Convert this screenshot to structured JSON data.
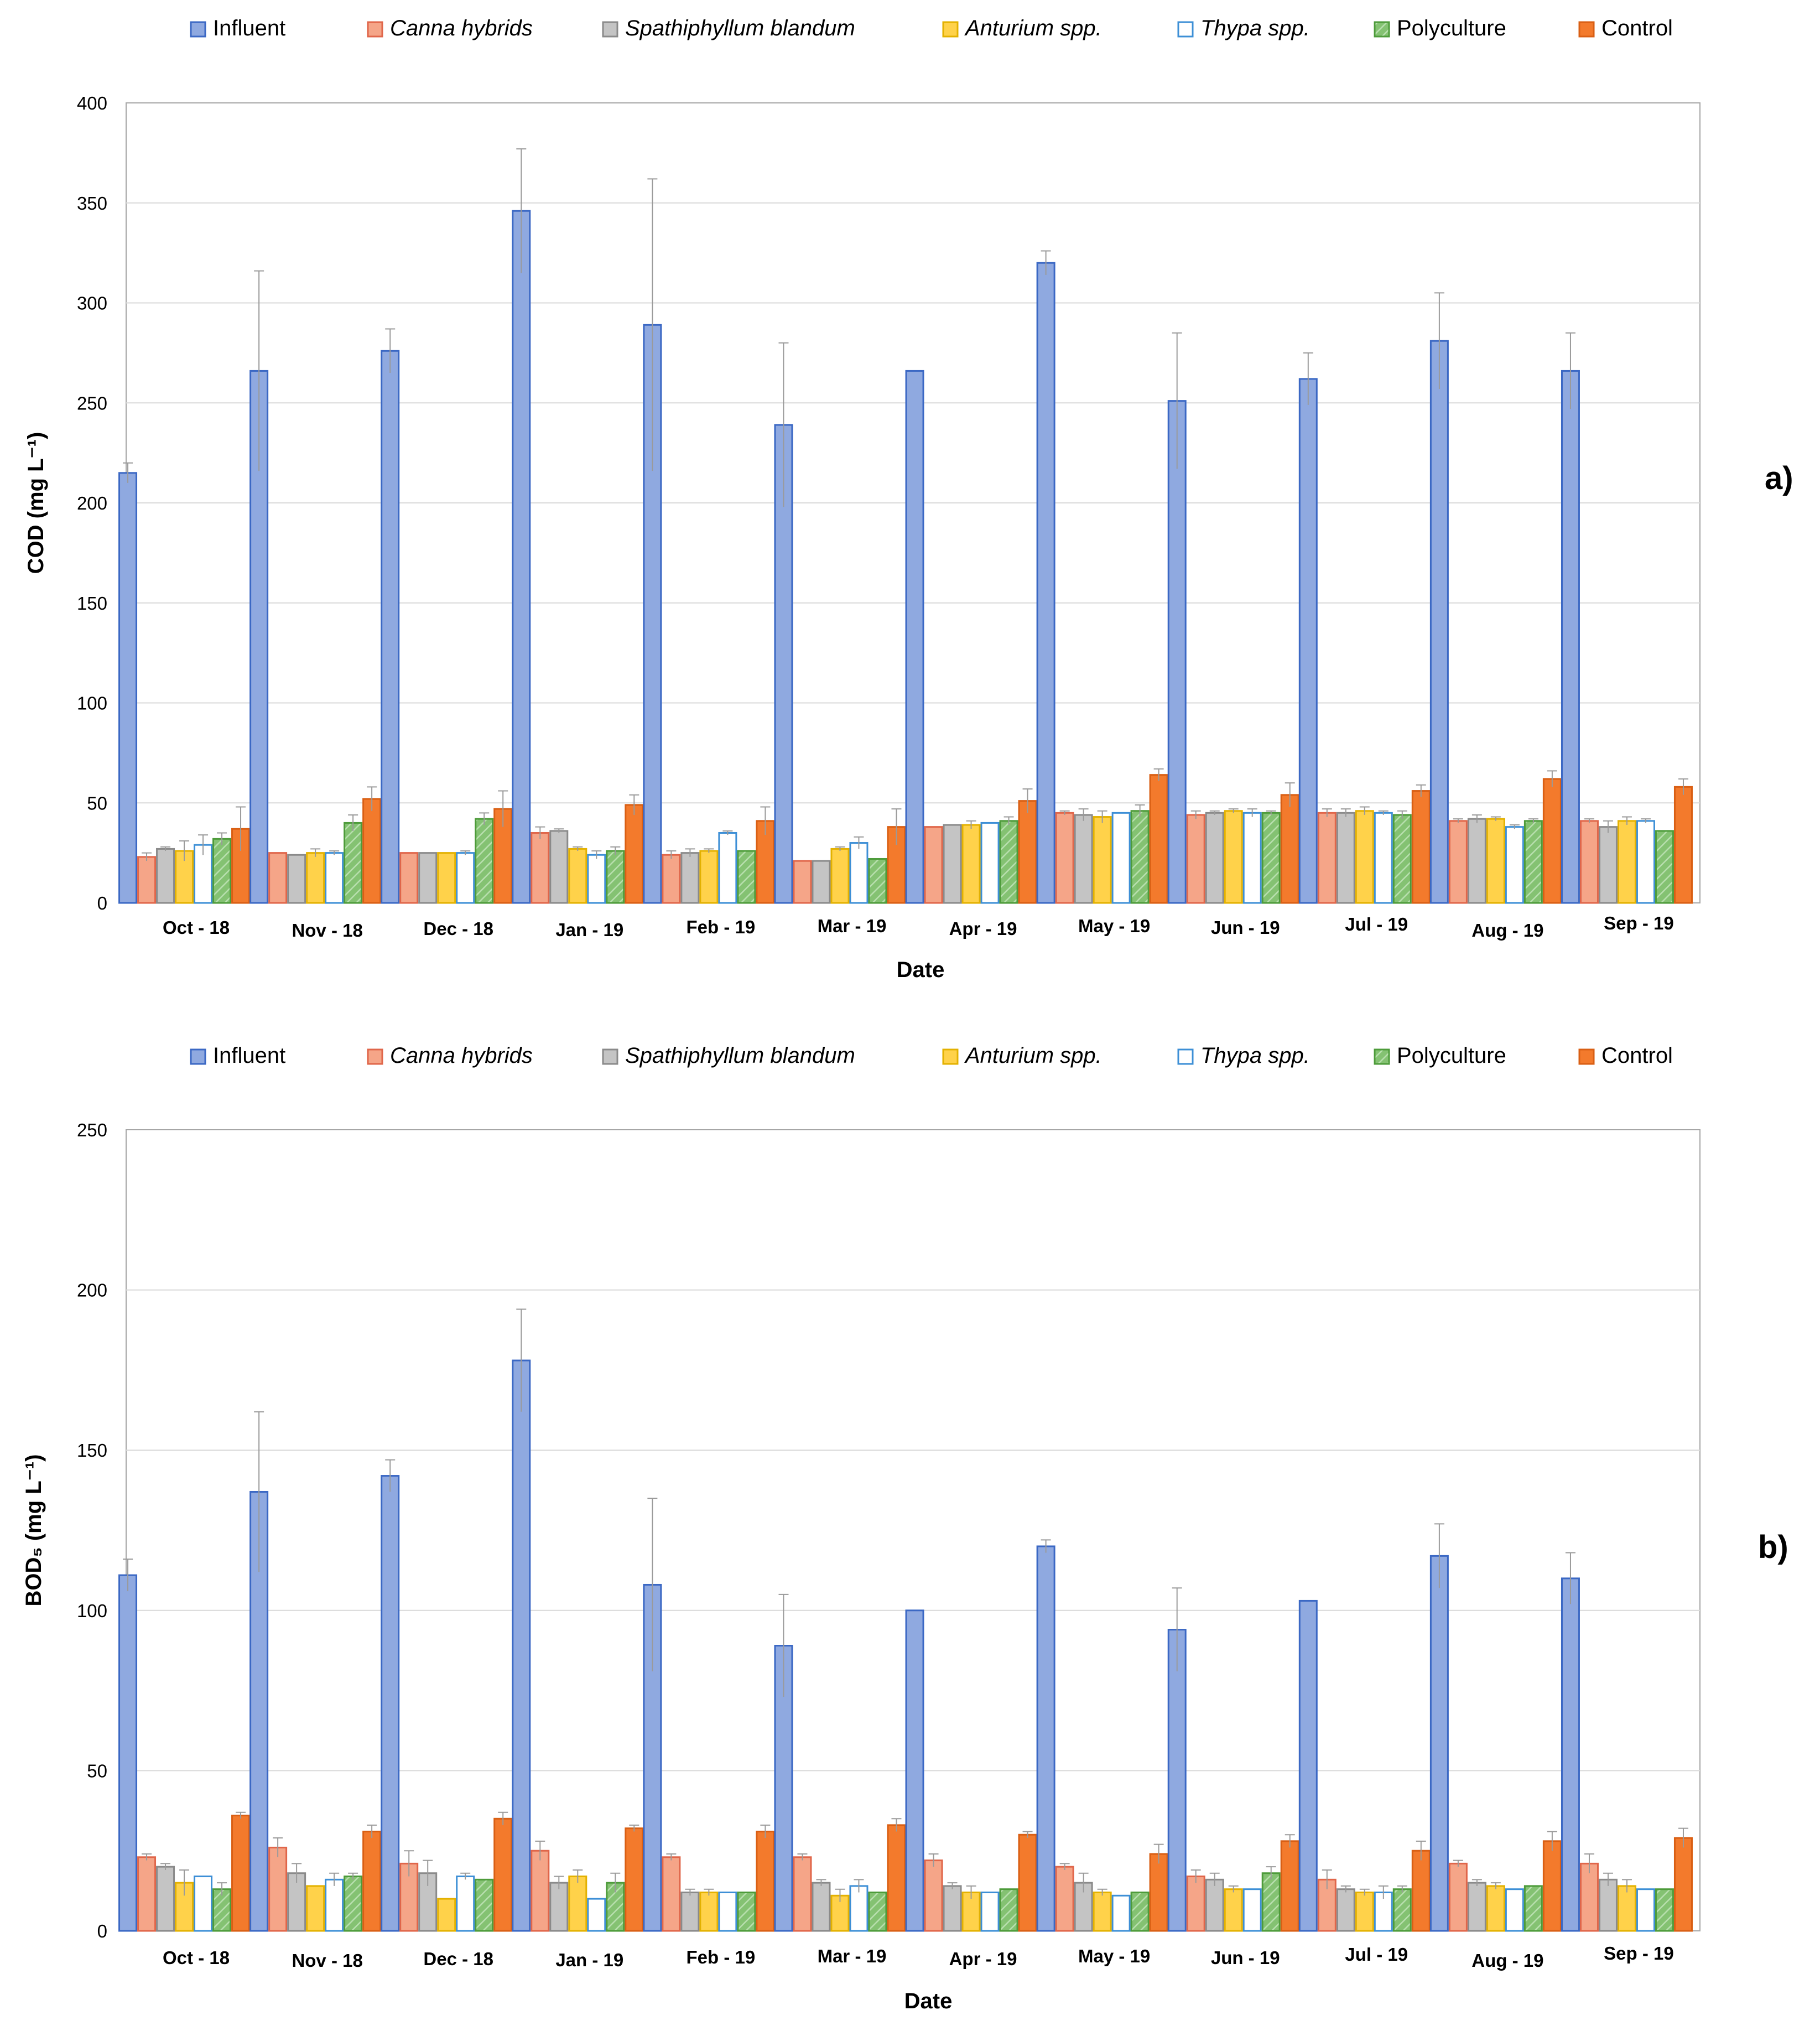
{
  "colors": {
    "Influent": "#8fa9e0",
    "Canna hybrids": "#f5a588",
    "Spathiphyllum blandum": "#c4c4c4",
    "Anturium spp.": "#ffd24a",
    "Thypa spp.": "#ffffff",
    "Polyculture": "#84c272",
    "Control": "#f37a2c"
  },
  "strokes": {
    "Influent": "#3b68c4",
    "Canna hybrids": "#e0664a",
    "Spathiphyllum blandum": "#8a8a8a",
    "Anturium spp.": "#e3b100",
    "Thypa spp.": "#3d8fd6",
    "Polyculture": "#4d9b3a",
    "Control": "#d95f14"
  },
  "legend_italic": [
    false,
    true,
    true,
    true,
    true,
    false,
    false
  ],
  "chart_data": [
    {
      "type": "bar",
      "panel_label": "a)",
      "xlabel": "Date",
      "ylabel": "COD (mg L⁻¹)",
      "ylim": [
        0,
        400
      ],
      "yticks": [
        0,
        50,
        100,
        150,
        200,
        250,
        300,
        350,
        400
      ],
      "grid": true,
      "legend": "top",
      "categories": [
        "Oct - 18",
        "Nov - 18",
        "Dec - 18",
        "Jan - 19",
        "Feb - 19",
        "Mar - 19",
        "Apr - 19",
        "May - 19",
        "Jun - 19",
        "Jul - 19",
        "Aug - 19",
        "Sep - 19"
      ],
      "series": [
        {
          "name": "Influent",
          "values": [
            215,
            266,
            276,
            346,
            289,
            239,
            266,
            320,
            251,
            262,
            281,
            266
          ],
          "errors": [
            5,
            50,
            11,
            31,
            73,
            41,
            0,
            6,
            34,
            13,
            24,
            19
          ]
        },
        {
          "name": "Canna hybrids",
          "values": [
            23,
            25,
            25,
            35,
            24,
            21,
            38,
            45,
            44,
            45,
            41,
            41
          ],
          "errors": [
            2,
            0,
            0,
            3,
            2,
            0,
            0,
            1,
            2,
            2,
            1,
            1
          ]
        },
        {
          "name": "Spathiphyllum blandum",
          "values": [
            27,
            24,
            25,
            36,
            25,
            21,
            39,
            44,
            45,
            45,
            42,
            38
          ],
          "errors": [
            1,
            0,
            0,
            1,
            2,
            0,
            0,
            3,
            1,
            2,
            2,
            3
          ]
        },
        {
          "name": "Anturium spp.",
          "values": [
            26,
            25,
            25,
            27,
            26,
            27,
            39,
            43,
            46,
            46,
            42,
            41
          ],
          "errors": [
            5,
            2,
            0,
            1,
            1,
            1,
            2,
            3,
            1,
            2,
            1,
            2
          ]
        },
        {
          "name": "Thypa spp.",
          "values": [
            29,
            25,
            25,
            24,
            35,
            30,
            40,
            45,
            45,
            45,
            38,
            41
          ],
          "errors": [
            5,
            1,
            1,
            2,
            1,
            3,
            0,
            0,
            2,
            1,
            1,
            1
          ]
        },
        {
          "name": "Polyculture",
          "values": [
            32,
            40,
            42,
            26,
            26,
            22,
            41,
            46,
            45,
            44,
            41,
            36
          ],
          "errors": [
            3,
            4,
            3,
            2,
            0,
            0,
            2,
            3,
            1,
            2,
            1,
            0
          ]
        },
        {
          "name": "Control",
          "values": [
            37,
            52,
            47,
            49,
            41,
            38,
            51,
            64,
            54,
            56,
            62,
            58
          ],
          "errors": [
            11,
            6,
            9,
            5,
            7,
            9,
            6,
            3,
            6,
            3,
            4,
            4
          ]
        }
      ]
    },
    {
      "type": "bar",
      "panel_label": "b)",
      "xlabel": "Date",
      "ylabel": "BOD₅ (mg L⁻¹)",
      "ylim": [
        0,
        250
      ],
      "yticks": [
        0,
        50,
        100,
        150,
        200,
        250
      ],
      "grid": true,
      "legend": "top",
      "categories": [
        "Oct - 18",
        "Nov - 18",
        "Dec - 18",
        "Jan - 19",
        "Feb - 19",
        "Mar - 19",
        "Apr - 19",
        "May - 19",
        "Jun - 19",
        "Jul - 19",
        "Aug - 19",
        "Sep - 19"
      ],
      "series": [
        {
          "name": "Influent",
          "values": [
            111,
            137,
            142,
            178,
            108,
            89,
            100,
            120,
            94,
            103,
            117,
            110
          ],
          "errors": [
            5,
            25,
            5,
            16,
            27,
            16,
            0,
            2,
            13,
            0,
            10,
            8
          ]
        },
        {
          "name": "Canna hybrids",
          "values": [
            23,
            26,
            21,
            25,
            23,
            23,
            22,
            20,
            17,
            16,
            21,
            21
          ],
          "errors": [
            1,
            3,
            4,
            3,
            1,
            1,
            2,
            1,
            2,
            3,
            1,
            3
          ]
        },
        {
          "name": "Spathiphyllum blandum",
          "values": [
            20,
            18,
            18,
            15,
            12,
            15,
            14,
            15,
            16,
            13,
            15,
            16
          ],
          "errors": [
            1,
            3,
            4,
            2,
            1,
            1,
            1,
            3,
            2,
            1,
            1,
            2
          ]
        },
        {
          "name": "Anturium spp.",
          "values": [
            15,
            14,
            10,
            17,
            12,
            11,
            12,
            12,
            13,
            12,
            14,
            14
          ],
          "errors": [
            4,
            0,
            0,
            2,
            1,
            2,
            2,
            1,
            1,
            1,
            1,
            2
          ]
        },
        {
          "name": "Thypa spp.",
          "values": [
            17,
            16,
            17,
            10,
            12,
            14,
            12,
            11,
            13,
            12,
            13,
            13
          ],
          "errors": [
            0,
            2,
            1,
            0,
            0,
            2,
            0,
            0,
            0,
            2,
            0,
            0
          ]
        },
        {
          "name": "Polyculture",
          "values": [
            13,
            17,
            16,
            15,
            12,
            12,
            13,
            12,
            18,
            13,
            14,
            13
          ],
          "errors": [
            2,
            1,
            0,
            3,
            0,
            0,
            0,
            0,
            2,
            1,
            0,
            0
          ]
        },
        {
          "name": "Control",
          "values": [
            36,
            31,
            35,
            32,
            31,
            33,
            30,
            24,
            28,
            25,
            28,
            29
          ],
          "errors": [
            1,
            2,
            2,
            1,
            2,
            2,
            1,
            3,
            2,
            3,
            3,
            3
          ]
        }
      ]
    }
  ]
}
